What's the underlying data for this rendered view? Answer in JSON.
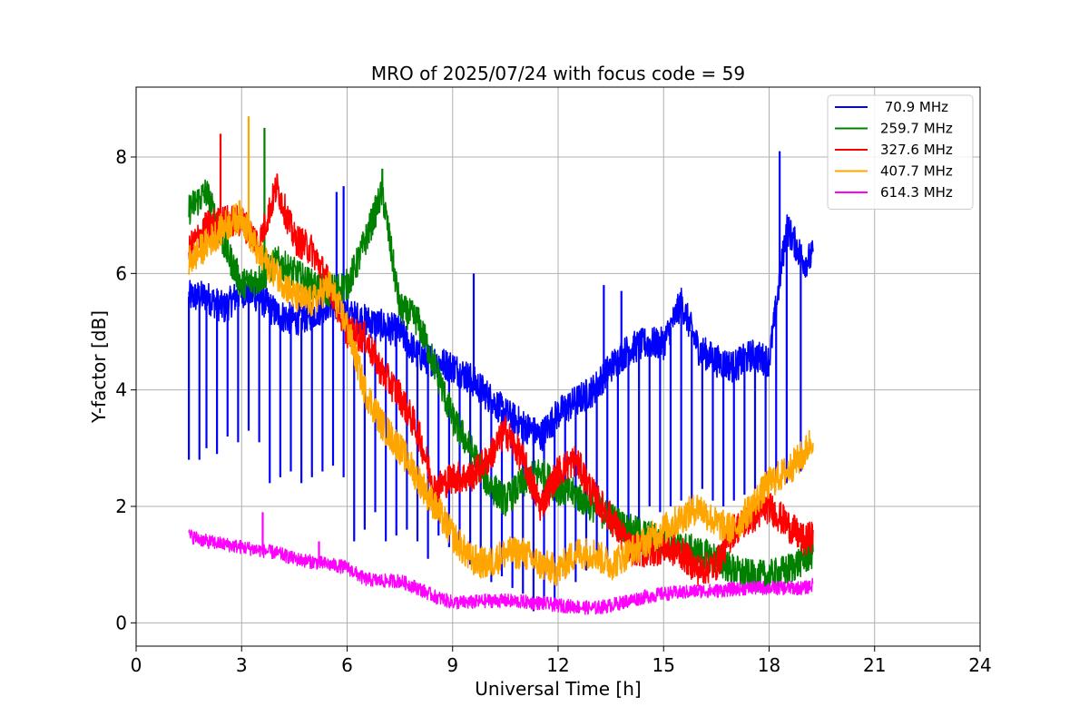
{
  "chart_data": {
    "type": "line",
    "title": "MRO of 2025/07/24 with focus code = 59",
    "xlabel": "Universal Time [h]",
    "ylabel": "Y-factor [dB]",
    "xlim": [
      0,
      24
    ],
    "ylim": [
      -0.4,
      9.2
    ],
    "xticks": [
      0,
      3,
      6,
      9,
      12,
      15,
      18,
      21,
      24
    ],
    "yticks": [
      0,
      2,
      4,
      6,
      8
    ],
    "grid": true,
    "legend_position": "top-right",
    "series": [
      {
        "name": " 70.9 MHz",
        "color": "#0000ff",
        "x": [
          1.5,
          2.0,
          2.5,
          3.0,
          3.5,
          4.0,
          4.5,
          5.0,
          5.5,
          6.0,
          6.5,
          7.0,
          7.5,
          8.0,
          8.5,
          9.0,
          9.5,
          10.0,
          10.5,
          11.0,
          11.5,
          12.0,
          12.5,
          13.0,
          13.5,
          14.0,
          14.5,
          15.0,
          15.5,
          16.0,
          16.5,
          17.0,
          17.5,
          18.0,
          18.5,
          19.0,
          19.25
        ],
        "y": [
          5.6,
          5.6,
          5.4,
          5.7,
          5.6,
          5.3,
          5.2,
          5.3,
          5.5,
          5.3,
          5.2,
          5.1,
          5.0,
          4.6,
          4.5,
          4.4,
          4.2,
          3.9,
          3.6,
          3.4,
          3.2,
          3.6,
          3.8,
          4.0,
          4.4,
          4.7,
          4.8,
          4.8,
          5.5,
          4.7,
          4.5,
          4.4,
          4.6,
          4.5,
          6.8,
          6.2,
          6.3
        ],
        "dips": [
          [
            1.5,
            2.8
          ],
          [
            1.8,
            2.8
          ],
          [
            2.0,
            3.0
          ],
          [
            2.3,
            2.9
          ],
          [
            2.6,
            3.2
          ],
          [
            2.9,
            3.1
          ],
          [
            3.2,
            3.3
          ],
          [
            3.5,
            3.1
          ],
          [
            3.8,
            2.4
          ],
          [
            4.1,
            2.5
          ],
          [
            4.4,
            2.6
          ],
          [
            4.7,
            2.4
          ],
          [
            5.0,
            2.5
          ],
          [
            5.3,
            2.6
          ],
          [
            5.6,
            2.7
          ],
          [
            5.9,
            2.5
          ],
          [
            6.2,
            1.4
          ],
          [
            6.5,
            1.6
          ],
          [
            6.8,
            1.9
          ],
          [
            7.1,
            1.4
          ],
          [
            7.4,
            1.5
          ],
          [
            7.7,
            1.6
          ],
          [
            8.0,
            1.4
          ],
          [
            8.3,
            1.1
          ],
          [
            8.6,
            1.5
          ],
          [
            8.9,
            1.3
          ],
          [
            9.2,
            1.2
          ],
          [
            9.5,
            1.0
          ],
          [
            9.8,
            1.0
          ],
          [
            10.1,
            0.7
          ],
          [
            10.4,
            0.8
          ],
          [
            10.7,
            0.6
          ],
          [
            11.0,
            0.5
          ],
          [
            11.3,
            0.2
          ],
          [
            11.6,
            0.4
          ],
          [
            11.9,
            0.4
          ],
          [
            12.2,
            0.8
          ],
          [
            12.5,
            0.7
          ],
          [
            12.8,
            0.9
          ],
          [
            13.1,
            1.0
          ],
          [
            13.4,
            1.1
          ],
          [
            13.7,
            1.5
          ],
          [
            14.0,
            1.6
          ],
          [
            14.3,
            1.7
          ],
          [
            14.6,
            2.0
          ],
          [
            14.9,
            1.9
          ],
          [
            15.2,
            2.0
          ],
          [
            15.5,
            2.1
          ],
          [
            15.8,
            2.0
          ],
          [
            16.1,
            2.3
          ],
          [
            16.4,
            2.1
          ],
          [
            16.7,
            2.0
          ],
          [
            17.0,
            2.1
          ],
          [
            17.3,
            2.2
          ],
          [
            17.6,
            2.3
          ],
          [
            17.9,
            2.3
          ],
          [
            18.2,
            2.5
          ],
          [
            18.5,
            2.4
          ],
          [
            18.9,
            2.6
          ]
        ],
        "spikes": [
          [
            5.7,
            7.4
          ],
          [
            5.9,
            7.5
          ],
          [
            9.6,
            6.0
          ],
          [
            13.3,
            5.8
          ],
          [
            13.8,
            5.7
          ],
          [
            18.3,
            8.1
          ]
        ]
      },
      {
        "name": "259.7 MHz",
        "color": "#008000",
        "x": [
          1.5,
          2.0,
          2.5,
          3.0,
          3.5,
          4.0,
          4.5,
          5.0,
          5.5,
          6.0,
          6.3,
          6.6,
          7.0,
          7.5,
          8.0,
          8.5,
          9.0,
          9.5,
          10.0,
          10.5,
          11.0,
          11.5,
          12.0,
          12.5,
          13.0,
          13.5,
          14.0,
          14.5,
          15.0,
          15.5,
          16.0,
          16.5,
          17.0,
          17.5,
          18.0,
          18.5,
          19.0,
          19.25
        ],
        "y": [
          7.1,
          7.4,
          6.5,
          5.8,
          5.9,
          6.2,
          6.0,
          5.8,
          5.7,
          5.8,
          6.2,
          6.7,
          7.4,
          5.4,
          5.2,
          4.4,
          3.5,
          3.0,
          2.4,
          2.1,
          2.4,
          2.6,
          2.3,
          2.2,
          2.0,
          1.8,
          1.6,
          1.5,
          1.4,
          1.3,
          1.2,
          1.1,
          0.9,
          0.8,
          0.8,
          0.9,
          1.1,
          1.2
        ],
        "spikes": [
          [
            3.65,
            8.5
          ],
          [
            7.0,
            7.8
          ]
        ]
      },
      {
        "name": "327.6 MHz",
        "color": "#ff0000",
        "x": [
          1.5,
          2.0,
          2.5,
          3.0,
          3.5,
          4.0,
          4.5,
          5.0,
          5.5,
          6.0,
          6.5,
          7.0,
          7.5,
          8.0,
          8.5,
          9.0,
          9.5,
          10.0,
          10.5,
          11.0,
          11.5,
          12.0,
          12.5,
          13.0,
          13.5,
          14.0,
          14.5,
          15.0,
          15.5,
          16.0,
          16.5,
          17.0,
          17.5,
          18.0,
          18.5,
          19.0,
          19.25
        ],
        "y": [
          6.4,
          6.8,
          6.9,
          6.9,
          6.5,
          7.5,
          6.6,
          6.4,
          5.8,
          5.0,
          4.9,
          4.3,
          3.9,
          3.3,
          2.3,
          2.5,
          2.5,
          2.8,
          3.3,
          2.8,
          2.0,
          2.6,
          2.8,
          2.2,
          1.8,
          1.3,
          1.2,
          1.3,
          1.2,
          0.9,
          1.0,
          1.6,
          1.8,
          2.0,
          1.7,
          1.4,
          1.5
        ],
        "spikes": [
          [
            2.4,
            8.4
          ]
        ]
      },
      {
        "name": "407.7 MHz",
        "color": "#ffa500",
        "x": [
          1.5,
          2.0,
          2.5,
          3.0,
          3.5,
          4.0,
          4.5,
          5.0,
          5.5,
          6.0,
          6.5,
          7.0,
          7.5,
          8.0,
          8.5,
          9.0,
          9.5,
          10.0,
          10.5,
          11.0,
          11.5,
          12.0,
          12.5,
          13.0,
          13.5,
          14.0,
          14.5,
          15.0,
          15.5,
          16.0,
          16.5,
          17.0,
          17.5,
          18.0,
          18.5,
          19.0,
          19.25
        ],
        "y": [
          6.2,
          6.5,
          6.8,
          7.0,
          6.3,
          6.0,
          5.6,
          5.5,
          5.8,
          5.1,
          4.0,
          3.4,
          3.0,
          2.5,
          2.0,
          1.5,
          1.1,
          1.0,
          1.2,
          1.2,
          1.0,
          0.9,
          1.2,
          1.2,
          1.0,
          1.2,
          1.4,
          1.6,
          1.8,
          2.0,
          1.7,
          1.6,
          2.0,
          2.4,
          2.6,
          2.9,
          3.2
        ],
        "spikes": [
          [
            3.2,
            8.7
          ]
        ]
      },
      {
        "name": "614.3 MHz",
        "color": "#ff00ff",
        "x": [
          1.5,
          2.0,
          2.5,
          3.0,
          3.5,
          4.0,
          4.5,
          5.0,
          5.5,
          6.0,
          6.5,
          7.0,
          7.5,
          8.0,
          8.5,
          9.0,
          9.5,
          10.0,
          10.5,
          11.0,
          11.5,
          12.0,
          12.5,
          13.0,
          13.5,
          14.0,
          14.5,
          15.0,
          15.5,
          16.0,
          16.5,
          17.0,
          17.5,
          18.0,
          18.5,
          19.0,
          19.25
        ],
        "y": [
          1.5,
          1.4,
          1.35,
          1.3,
          1.25,
          1.2,
          1.1,
          1.05,
          1.0,
          0.95,
          0.75,
          0.72,
          0.72,
          0.6,
          0.45,
          0.35,
          0.35,
          0.38,
          0.38,
          0.36,
          0.34,
          0.3,
          0.28,
          0.25,
          0.3,
          0.38,
          0.45,
          0.5,
          0.52,
          0.55,
          0.55,
          0.58,
          0.6,
          0.6,
          0.6,
          0.6,
          0.65
        ],
        "spikes": [
          [
            3.6,
            1.9
          ],
          [
            5.2,
            1.4
          ]
        ]
      }
    ]
  }
}
